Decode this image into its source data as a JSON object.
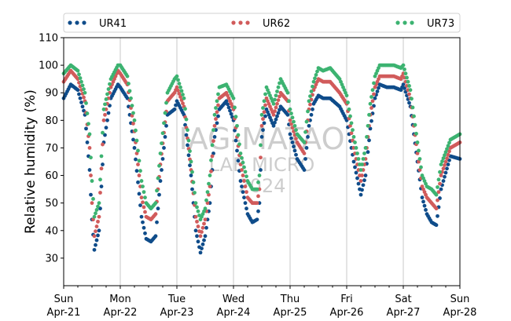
{
  "chart_data": {
    "type": "scatter",
    "title": "",
    "xlabel": "",
    "ylabel": "Relative humidity (%)",
    "xlim": [
      "2024-04-21 00:00",
      "2024-04-28 00:00"
    ],
    "ylim": [
      20,
      110
    ],
    "yticks": [
      30,
      40,
      50,
      60,
      70,
      80,
      90,
      100,
      110
    ],
    "xticks": [
      {
        "day": "Sun",
        "date": "Apr-21"
      },
      {
        "day": "Mon",
        "date": "Apr-22"
      },
      {
        "day": "Tue",
        "date": "Apr-23"
      },
      {
        "day": "Wed",
        "date": "Apr-24"
      },
      {
        "day": "Thu",
        "date": "Apr-25"
      },
      {
        "day": "Fri",
        "date": "Apr-26"
      },
      {
        "day": "Sat",
        "date": "Apr-27"
      },
      {
        "day": "Sun",
        "date": "Apr-28"
      }
    ],
    "grid": "vertical at day boundaries",
    "legend_position": "top, above plot",
    "colors": {
      "UR41": "#0f4c8a",
      "UR62": "#d15b5b",
      "UR73": "#3cb371"
    },
    "series": [
      {
        "name": "UR41",
        "hours": [
          0,
          3,
          6,
          9,
          11,
          12,
          13,
          15,
          17,
          20,
          23,
          24,
          27,
          30,
          33,
          35,
          37,
          39,
          41,
          44,
          47,
          48,
          51,
          54,
          56,
          58,
          60,
          62,
          64,
          66,
          69,
          72,
          75,
          78,
          80,
          82,
          83,
          84,
          86,
          89,
          92,
          95,
          96,
          99,
          102,
          104,
          106,
          108,
          110,
          113,
          117,
          120,
          123,
          126,
          128,
          130,
          132,
          134,
          137,
          140,
          143,
          144,
          147,
          150,
          152,
          154,
          156,
          158,
          160,
          164,
          168
        ],
        "values": [
          88,
          93,
          91,
          82,
          62,
          44,
          33,
          40,
          72,
          88,
          93,
          92,
          88,
          70,
          45,
          37,
          36,
          38,
          58,
          82,
          84,
          87,
          82,
          60,
          40,
          32,
          38,
          50,
          74,
          84,
          87,
          80,
          58,
          46,
          43,
          44,
          50,
          74,
          84,
          78,
          85,
          82,
          75,
          66,
          62,
          78,
          86,
          89,
          88,
          88,
          85,
          80,
          65,
          53,
          60,
          77,
          88,
          93,
          92,
          92,
          91,
          93,
          85,
          65,
          52,
          46,
          43,
          42,
          55,
          67,
          66
        ]
      },
      {
        "name": "UR62",
        "hours": [
          0,
          3,
          6,
          9,
          11,
          12,
          13,
          15,
          17,
          20,
          23,
          24,
          27,
          30,
          33,
          35,
          37,
          39,
          41,
          44,
          47,
          48,
          51,
          54,
          56,
          58,
          60,
          62,
          64,
          66,
          69,
          72,
          75,
          78,
          80,
          82,
          83,
          84,
          86,
          89,
          92,
          95,
          96,
          99,
          102,
          104,
          106,
          108,
          110,
          113,
          117,
          120,
          123,
          126,
          128,
          130,
          132,
          134,
          137,
          140,
          143,
          144,
          147,
          150,
          152,
          154,
          156,
          158,
          160,
          164,
          168
        ],
        "values": [
          94,
          98,
          95,
          87,
          70,
          50,
          38,
          45,
          80,
          92,
          98,
          97,
          93,
          76,
          52,
          45,
          44,
          46,
          64,
          87,
          90,
          92,
          85,
          62,
          45,
          38,
          44,
          56,
          78,
          88,
          90,
          84,
          64,
          52,
          50,
          50,
          55,
          78,
          88,
          82,
          90,
          87,
          80,
          72,
          68,
          84,
          91,
          95,
          94,
          94,
          90,
          86,
          70,
          58,
          66,
          82,
          92,
          96,
          96,
          96,
          95,
          97,
          88,
          68,
          56,
          52,
          50,
          48,
          60,
          70,
          72
        ]
      },
      {
        "name": "UR73",
        "hours": [
          0,
          3,
          6,
          9,
          11,
          12,
          13,
          15,
          17,
          20,
          23,
          24,
          27,
          30,
          33,
          35,
          37,
          39,
          41,
          44,
          47,
          48,
          51,
          54,
          56,
          58,
          60,
          62,
          64,
          66,
          69,
          72,
          75,
          78,
          80,
          82,
          83,
          84,
          86,
          89,
          92,
          95,
          96,
          99,
          102,
          104,
          106,
          108,
          110,
          113,
          117,
          120,
          123,
          126,
          128,
          130,
          132,
          134,
          137,
          140,
          143,
          144,
          147,
          150,
          152,
          154,
          156,
          158,
          160,
          164,
          168
        ],
        "values": [
          97,
          100,
          98,
          90,
          75,
          58,
          45,
          50,
          84,
          95,
          100,
          100,
          96,
          80,
          58,
          50,
          48,
          50,
          68,
          90,
          95,
          96,
          88,
          65,
          50,
          44,
          48,
          60,
          82,
          92,
          93,
          88,
          68,
          58,
          55,
          55,
          60,
          82,
          92,
          86,
          95,
          90,
          84,
          75,
          72,
          87,
          94,
          99,
          98,
          99,
          95,
          89,
          74,
          62,
          70,
          86,
          96,
          100,
          100,
          100,
          99,
          100,
          91,
          72,
          60,
          56,
          55,
          53,
          64,
          73,
          75
        ]
      }
    ]
  },
  "legend": {
    "items": [
      {
        "label": "UR41",
        "color": "#0f4c8a"
      },
      {
        "label": "UR62",
        "color": "#d15b5b"
      },
      {
        "label": "UR73",
        "color": "#3cb371"
      }
    ]
  },
  "watermark": {
    "line1": "IAG-MATAO",
    "line2": "LAB MICRO",
    "line3": "2024"
  }
}
